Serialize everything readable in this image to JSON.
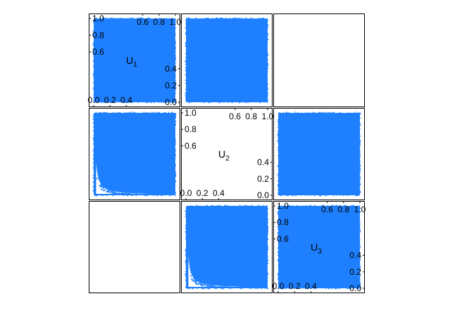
{
  "chart_data": {
    "type": "scatter",
    "subtype": "scatterplot-matrix",
    "variables": [
      {
        "name": "U",
        "subscript": "1"
      },
      {
        "name": "U",
        "subscript": "2"
      },
      {
        "name": "U",
        "subscript": "3"
      }
    ],
    "axis_range": [
      0,
      1
    ],
    "tick_labels_upper": [
      "0.6",
      "0.8",
      "1.0"
    ],
    "tick_labels_upper_right": [
      "0.6",
      "0.8"
    ],
    "tick_labels_lower": [
      "0.0",
      "0.2",
      "0.4"
    ],
    "tick_labels_lower_right": [
      "0.2",
      "0.4"
    ],
    "point_color": "#1E80FF",
    "grid": false,
    "legend": "none",
    "panels": [
      {
        "row": 1,
        "col": 1,
        "x_var": "U1",
        "y_var": "U3",
        "pattern": "uniform"
      },
      {
        "row": 1,
        "col": 2,
        "x_var": "U2",
        "y_var": "U3",
        "pattern": "uniform"
      },
      {
        "row": 2,
        "col": 1,
        "x_var": "U1",
        "y_var": "U2",
        "pattern": "lower-left-hyperbolic-gap"
      },
      {
        "row": 2,
        "col": 3,
        "x_var": "U3",
        "y_var": "U2",
        "pattern": "uniform"
      },
      {
        "row": 3,
        "col": 2,
        "x_var": "U2",
        "y_var": "U1",
        "pattern": "lower-left-hyperbolic-gap"
      },
      {
        "row": 3,
        "col": 3,
        "x_var": "U3",
        "y_var": "U1",
        "pattern": "uniform"
      }
    ]
  }
}
